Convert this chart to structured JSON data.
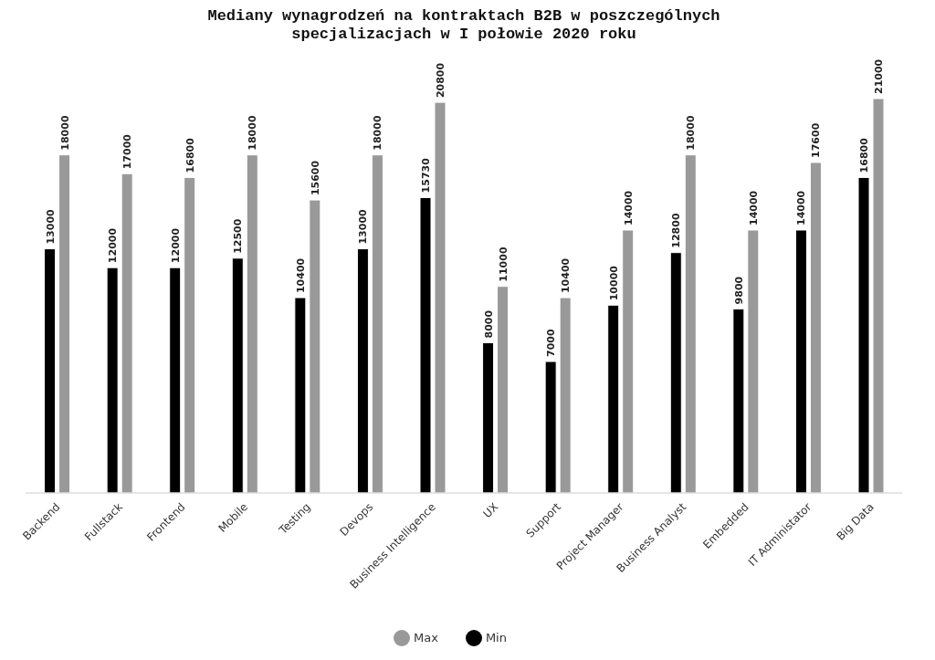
{
  "chart_data": {
    "type": "bar",
    "title": "Mediany wynagrodzeń na kontraktach B2B w poszczególnych specjalizacjach w I połowie 2020 roku",
    "categories": [
      "Backend",
      "Fullstack",
      "Frontend",
      "Mobile",
      "Testing",
      "Devops",
      "Business Intelligence",
      "UX",
      "Support",
      "Project Manager",
      "Business Analyst",
      "Embedded",
      "IT Administator",
      "Big Data"
    ],
    "series": [
      {
        "name": "Min",
        "color": "#000000",
        "values": [
          13000,
          12000,
          12000,
          12500,
          10400,
          13000,
          15730,
          8000,
          7000,
          10000,
          12800,
          9800,
          14000,
          16800
        ]
      },
      {
        "name": "Max",
        "color": "#999999",
        "values": [
          18000,
          17000,
          16800,
          18000,
          15600,
          18000,
          20800,
          11000,
          10400,
          14000,
          18000,
          14000,
          17600,
          21000
        ]
      }
    ],
    "data_labels": true,
    "grid": false,
    "legend": "bottom"
  }
}
